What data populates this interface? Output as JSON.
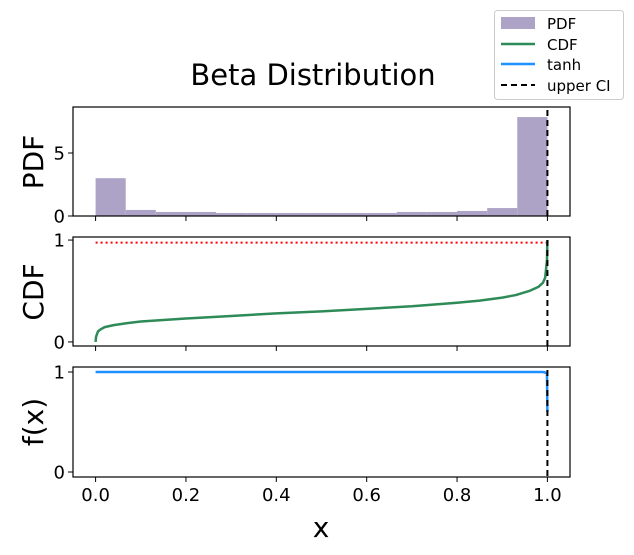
{
  "chart_data": [
    {
      "type": "bar",
      "panel": "pdf",
      "title": "Beta Distribution",
      "ylabel": "PDF",
      "xlabel": "",
      "xlim": [
        -0.05,
        1.05
      ],
      "ylim": [
        0,
        8.65
      ],
      "yticks": [
        0,
        5
      ],
      "ytick_labels": [
        "0",
        "5"
      ],
      "xticks": [
        0.0,
        0.2,
        0.4,
        0.6,
        0.8,
        1.0
      ],
      "bin_edges": [
        0.0,
        0.0667,
        0.1333,
        0.2,
        0.2667,
        0.3333,
        0.4,
        0.4667,
        0.5333,
        0.6,
        0.6667,
        0.7333,
        0.8,
        0.8667,
        0.9333,
        1.0
      ],
      "values": [
        3.0,
        0.48,
        0.32,
        0.32,
        0.24,
        0.24,
        0.24,
        0.24,
        0.24,
        0.24,
        0.32,
        0.32,
        0.4,
        0.63,
        7.85
      ],
      "color": "#ada3c6",
      "vline": {
        "x": 1.0,
        "label": "upper CI",
        "style": "dashed",
        "color": "#000000"
      }
    },
    {
      "type": "line",
      "panel": "cdf",
      "ylabel": "CDF",
      "xlim": [
        -0.05,
        1.05
      ],
      "ylim": [
        -0.04,
        1.03
      ],
      "yticks": [
        0,
        1
      ],
      "ytick_labels": [
        "0",
        "1"
      ],
      "series": [
        {
          "name": "CDF",
          "color": "#2e8b57",
          "x": [
            0.0,
            0.001,
            0.005,
            0.01,
            0.02,
            0.04,
            0.07,
            0.1,
            0.15,
            0.2,
            0.3,
            0.4,
            0.5,
            0.6,
            0.7,
            0.8,
            0.85,
            0.9,
            0.93,
            0.96,
            0.98,
            0.99,
            0.995,
            0.999,
            1.0
          ],
          "y": [
            0.0,
            0.05,
            0.1,
            0.12,
            0.145,
            0.165,
            0.185,
            0.2,
            0.215,
            0.23,
            0.255,
            0.28,
            0.3,
            0.325,
            0.35,
            0.385,
            0.405,
            0.435,
            0.46,
            0.5,
            0.54,
            0.58,
            0.63,
            0.8,
            1.0
          ]
        }
      ],
      "hline": {
        "y": 0.975,
        "style": "dotted",
        "color": "#ff0000",
        "xmin": 0.0,
        "xmax": 1.0
      },
      "vline": {
        "x": 1.0,
        "style": "dashed",
        "color": "#000000"
      }
    },
    {
      "type": "line",
      "panel": "tanh",
      "ylabel": "f(x)",
      "xlabel": "x",
      "xlim": [
        -0.05,
        1.05
      ],
      "ylim": [
        -0.05,
        1.05
      ],
      "yticks": [
        0,
        1
      ],
      "ytick_labels": [
        "0",
        "1"
      ],
      "xticks": [
        0.0,
        0.2,
        0.4,
        0.6,
        0.8,
        1.0
      ],
      "xtick_labels": [
        "0.0",
        "0.2",
        "0.4",
        "0.6",
        "0.8",
        "1.0"
      ],
      "series": [
        {
          "name": "tanh",
          "color": "#1e90ff",
          "x": [
            0.0,
            0.5,
            0.99,
            0.999,
            1.0
          ],
          "y": [
            1.0,
            1.0,
            1.0,
            0.99,
            0.6
          ]
        }
      ],
      "vline": {
        "x": 1.0,
        "style": "dashed",
        "color": "#000000"
      }
    }
  ],
  "legend": {
    "placement": "top-right",
    "entries": [
      {
        "label": "PDF",
        "kind": "patch",
        "color": "#ada3c6"
      },
      {
        "label": "CDF",
        "kind": "line",
        "color": "#2e8b57"
      },
      {
        "label": "tanh",
        "kind": "line",
        "color": "#1e90ff"
      },
      {
        "label": "upper CI",
        "kind": "dashed",
        "color": "#000000"
      }
    ]
  }
}
